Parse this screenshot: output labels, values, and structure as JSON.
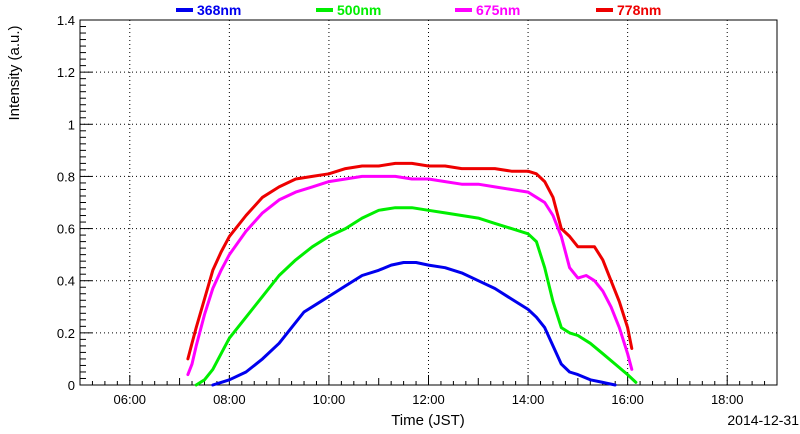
{
  "chart_data": {
    "type": "line",
    "xlabel": "Time (JST)",
    "ylabel": "Intensity (a.u.)",
    "date_label": "2014-12-31",
    "x_ticks": [
      "06:00",
      "08:00",
      "10:00",
      "12:00",
      "14:00",
      "16:00",
      "18:00"
    ],
    "x_tick_hours": [
      6,
      8,
      10,
      12,
      14,
      16,
      18
    ],
    "xlim": [
      "05:00",
      "19:00"
    ],
    "y_ticks": [
      "0",
      "0.2",
      "0.4",
      "0.6",
      "0.8",
      "1",
      "1.2",
      "1.4"
    ],
    "ylim": [
      0,
      1.4
    ],
    "grid": true,
    "legend_position": "top",
    "series": [
      {
        "name": "368nm",
        "color": "#0000ee",
        "x": [
          "07:40",
          "07:50",
          "08:00",
          "08:20",
          "08:40",
          "09:00",
          "09:15",
          "09:30",
          "09:45",
          "10:00",
          "10:20",
          "10:40",
          "11:00",
          "11:15",
          "11:30",
          "11:45",
          "12:00",
          "12:20",
          "12:40",
          "13:00",
          "13:20",
          "13:40",
          "14:00",
          "14:10",
          "14:20",
          "14:30",
          "14:40",
          "14:50",
          "15:00",
          "15:15",
          "15:30",
          "15:45"
        ],
        "y": [
          0.0,
          0.01,
          0.02,
          0.05,
          0.1,
          0.16,
          0.22,
          0.28,
          0.31,
          0.34,
          0.38,
          0.42,
          0.44,
          0.46,
          0.47,
          0.47,
          0.46,
          0.45,
          0.43,
          0.4,
          0.37,
          0.33,
          0.29,
          0.26,
          0.22,
          0.15,
          0.08,
          0.05,
          0.04,
          0.02,
          0.01,
          0.0
        ]
      },
      {
        "name": "500nm",
        "color": "#00ee00",
        "x": [
          "07:20",
          "07:30",
          "07:40",
          "07:50",
          "08:00",
          "08:20",
          "08:40",
          "09:00",
          "09:20",
          "09:40",
          "10:00",
          "10:20",
          "10:40",
          "11:00",
          "11:20",
          "11:40",
          "12:00",
          "12:20",
          "12:40",
          "13:00",
          "13:20",
          "13:40",
          "14:00",
          "14:10",
          "14:20",
          "14:30",
          "14:40",
          "14:50",
          "15:00",
          "15:15",
          "15:30",
          "15:45",
          "16:00",
          "16:10"
        ],
        "y": [
          0.0,
          0.02,
          0.06,
          0.12,
          0.18,
          0.26,
          0.34,
          0.42,
          0.48,
          0.53,
          0.57,
          0.6,
          0.64,
          0.67,
          0.68,
          0.68,
          0.67,
          0.66,
          0.65,
          0.64,
          0.62,
          0.6,
          0.58,
          0.55,
          0.45,
          0.32,
          0.22,
          0.2,
          0.19,
          0.16,
          0.12,
          0.08,
          0.04,
          0.01
        ]
      },
      {
        "name": "675nm",
        "color": "#ff00ff",
        "x": [
          "07:10",
          "07:15",
          "07:20",
          "07:30",
          "07:40",
          "07:50",
          "08:00",
          "08:20",
          "08:40",
          "09:00",
          "09:20",
          "09:40",
          "10:00",
          "10:20",
          "10:40",
          "11:00",
          "11:20",
          "11:40",
          "12:00",
          "12:20",
          "12:40",
          "13:00",
          "13:20",
          "13:40",
          "14:00",
          "14:10",
          "14:20",
          "14:30",
          "14:40",
          "14:50",
          "15:00",
          "15:10",
          "15:20",
          "15:30",
          "15:40",
          "15:50",
          "16:00",
          "16:05"
        ],
        "y": [
          0.04,
          0.08,
          0.15,
          0.27,
          0.37,
          0.44,
          0.5,
          0.59,
          0.66,
          0.71,
          0.74,
          0.76,
          0.78,
          0.79,
          0.8,
          0.8,
          0.8,
          0.79,
          0.79,
          0.78,
          0.77,
          0.77,
          0.76,
          0.75,
          0.74,
          0.72,
          0.7,
          0.65,
          0.57,
          0.45,
          0.41,
          0.42,
          0.4,
          0.36,
          0.3,
          0.22,
          0.12,
          0.06
        ]
      },
      {
        "name": "778nm",
        "color": "#ee0000",
        "x": [
          "07:10",
          "07:15",
          "07:20",
          "07:30",
          "07:40",
          "07:50",
          "08:00",
          "08:20",
          "08:40",
          "09:00",
          "09:20",
          "09:40",
          "10:00",
          "10:20",
          "10:40",
          "11:00",
          "11:20",
          "11:40",
          "12:00",
          "12:20",
          "12:40",
          "13:00",
          "13:20",
          "13:40",
          "14:00",
          "14:10",
          "14:20",
          "14:30",
          "14:40",
          "14:50",
          "15:00",
          "15:10",
          "15:20",
          "15:30",
          "15:40",
          "15:50",
          "16:00",
          "16:05"
        ],
        "y": [
          0.1,
          0.16,
          0.22,
          0.33,
          0.44,
          0.51,
          0.57,
          0.65,
          0.72,
          0.76,
          0.79,
          0.8,
          0.81,
          0.83,
          0.84,
          0.84,
          0.85,
          0.85,
          0.84,
          0.84,
          0.83,
          0.83,
          0.83,
          0.82,
          0.82,
          0.81,
          0.78,
          0.72,
          0.6,
          0.57,
          0.53,
          0.53,
          0.53,
          0.48,
          0.4,
          0.32,
          0.22,
          0.14
        ]
      }
    ]
  }
}
